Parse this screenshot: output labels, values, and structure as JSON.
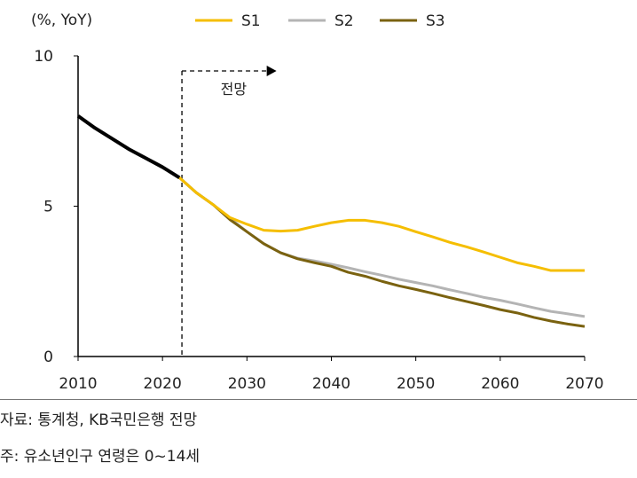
{
  "chart_data": {
    "type": "line",
    "ylabel": "(%, YoY)",
    "ylim": [
      0,
      10
    ],
    "yticks": [
      0,
      5,
      10
    ],
    "xlim": [
      2010,
      2070
    ],
    "xticks": [
      2010,
      2020,
      2030,
      2040,
      2050,
      2060,
      2070
    ],
    "grid": false,
    "legend_position": "top",
    "annotation": {
      "label": "전망",
      "from_year": 2022.3,
      "to_year": 2033.5
    },
    "historical": {
      "color": "#000000",
      "x": [
        2010,
        2012,
        2014,
        2016,
        2018,
        2020,
        2022
      ],
      "y": [
        8.0,
        7.6,
        7.25,
        6.9,
        6.6,
        6.3,
        5.95
      ]
    },
    "x": [
      2022,
      2024,
      2026,
      2028,
      2030,
      2032,
      2034,
      2036,
      2038,
      2040,
      2042,
      2044,
      2046,
      2048,
      2050,
      2052,
      2054,
      2056,
      2058,
      2060,
      2062,
      2064,
      2066,
      2068,
      2070
    ],
    "series": [
      {
        "name": "S1",
        "color": "#F5BE00",
        "values": [
          5.95,
          5.45,
          5.05,
          4.62,
          4.4,
          4.2,
          4.17,
          4.2,
          4.33,
          4.45,
          4.53,
          4.53,
          4.45,
          4.33,
          4.15,
          3.98,
          3.8,
          3.65,
          3.48,
          3.3,
          3.12,
          3.0,
          2.86,
          2.86,
          2.86
        ]
      },
      {
        "name": "S2",
        "color": "#B4B4B4",
        "values": [
          5.95,
          5.45,
          5.05,
          4.6,
          4.15,
          3.75,
          3.45,
          3.27,
          3.18,
          3.07,
          2.95,
          2.82,
          2.7,
          2.57,
          2.46,
          2.35,
          2.22,
          2.1,
          1.97,
          1.87,
          1.75,
          1.62,
          1.5,
          1.42,
          1.33
        ]
      },
      {
        "name": "S3",
        "color": "#7A6210",
        "values": [
          5.95,
          5.45,
          5.05,
          4.55,
          4.15,
          3.75,
          3.45,
          3.25,
          3.12,
          3.0,
          2.8,
          2.67,
          2.5,
          2.35,
          2.23,
          2.1,
          1.96,
          1.83,
          1.7,
          1.56,
          1.45,
          1.3,
          1.18,
          1.08,
          1.0
        ]
      }
    ]
  },
  "notes": {
    "source": "자료: 통계청, KB국민은행 전망",
    "footnote": "주: 유소년인구 연령은 0~14세"
  }
}
